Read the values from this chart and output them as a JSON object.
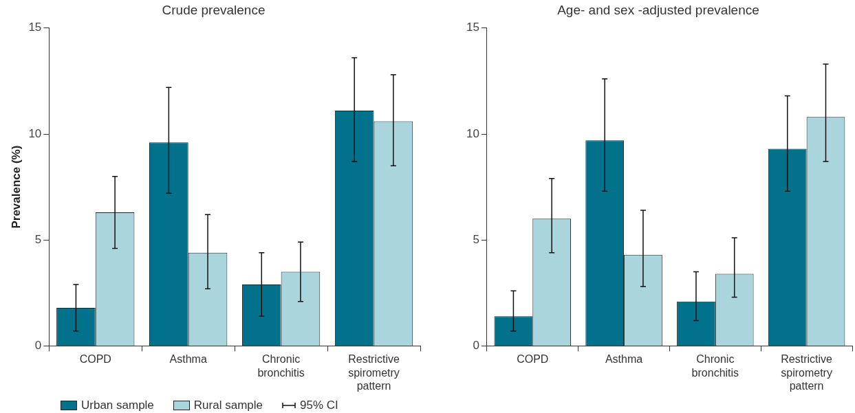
{
  "chart_data": [
    {
      "type": "bar",
      "title": "Crude prevalence",
      "ylabel": "Prevalence (%)",
      "categories": [
        "COPD",
        "Asthma",
        "Chronic\nbronchitis",
        "Restrictive\nspirometry\npattern"
      ],
      "series": [
        {
          "name": "Urban sample",
          "color": "#02728c",
          "values": [
            1.8,
            9.6,
            2.9,
            11.1
          ],
          "errors": [
            [
              0.7,
              2.9
            ],
            [
              7.2,
              12.2
            ],
            [
              1.4,
              4.4
            ],
            [
              8.7,
              13.6
            ]
          ]
        },
        {
          "name": "Rural sample",
          "color": "#abd5dc",
          "values": [
            6.3,
            4.4,
            3.5,
            10.6
          ],
          "errors": [
            [
              4.6,
              8.0
            ],
            [
              2.7,
              6.2
            ],
            [
              2.1,
              4.9
            ],
            [
              8.5,
              12.8
            ]
          ]
        }
      ],
      "ylim": [
        0,
        15
      ],
      "yticks": [
        0,
        5,
        10,
        15
      ],
      "grid": false,
      "legend": "bottom left",
      "annotations": [
        "95% CI"
      ]
    },
    {
      "type": "bar",
      "title": "Age- and sex -adjusted prevalence",
      "categories": [
        "COPD",
        "Asthma",
        "Chronic\nbronchitis",
        "Restrictive\nspirometry\npattern"
      ],
      "series": [
        {
          "color": "#02728c",
          "values": [
            1.4,
            9.7,
            2.1,
            9.3
          ],
          "errors": [
            [
              0.7,
              2.6
            ],
            [
              7.3,
              12.6
            ],
            [
              1.2,
              3.5
            ],
            [
              7.3,
              11.8
            ]
          ]
        },
        {
          "color": "#abd5dc",
          "values": [
            6.0,
            4.3,
            3.4,
            10.8
          ],
          "errors": [
            [
              4.4,
              7.9
            ],
            [
              2.8,
              6.4
            ],
            [
              2.3,
              5.1
            ],
            [
              8.7,
              13.3
            ]
          ]
        }
      ],
      "ylim": [
        0,
        15
      ],
      "yticks": [
        0,
        5,
        10,
        15
      ],
      "grid": false,
      "legend": false
    }
  ]
}
